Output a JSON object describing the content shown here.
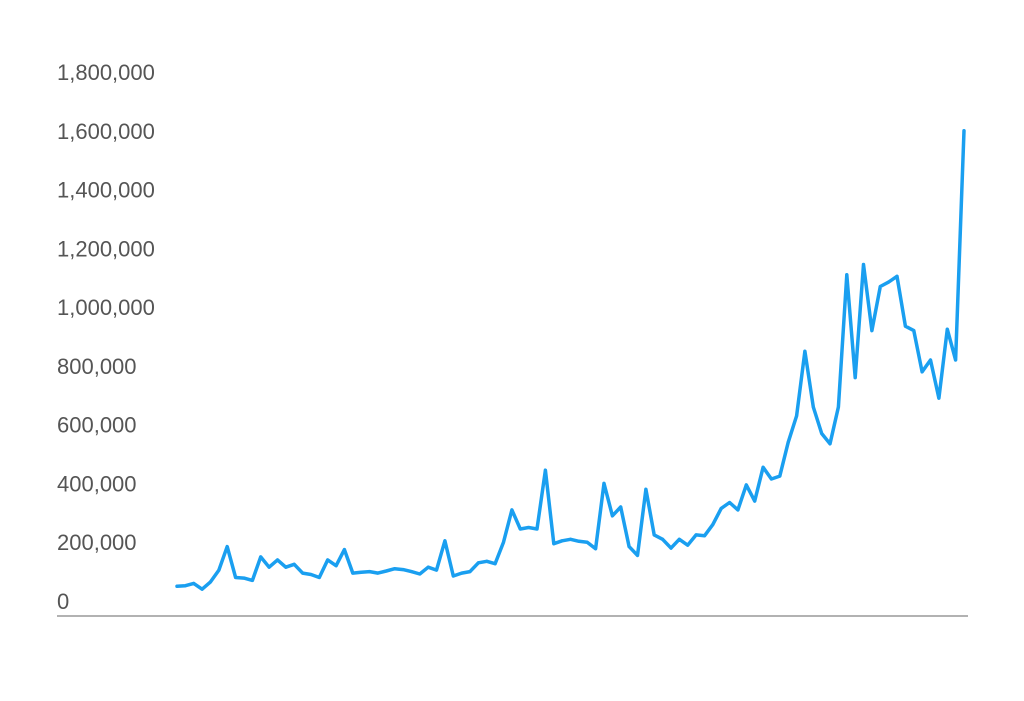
{
  "chart_data": {
    "type": "line",
    "title": "",
    "xlabel": "",
    "ylabel": "",
    "ylim": [
      0,
      1800000
    ],
    "yticks": [
      {
        "value": 0,
        "label": "0"
      },
      {
        "value": 200000,
        "label": "200,000"
      },
      {
        "value": 400000,
        "label": "400,000"
      },
      {
        "value": 600000,
        "label": "600,000"
      },
      {
        "value": 800000,
        "label": "800,000"
      },
      {
        "value": 1000000,
        "label": "1,000,000"
      },
      {
        "value": 1200000,
        "label": "1,200,000"
      },
      {
        "value": 1400000,
        "label": "1,400,000"
      },
      {
        "value": 1600000,
        "label": "1,600,000"
      },
      {
        "value": 1800000,
        "label": "1,800,000"
      }
    ],
    "grid": false,
    "legend": "none",
    "colors": {
      "line": "#1a9ff0",
      "axis": "#999999",
      "tick_text": "#555555"
    },
    "series": [
      {
        "values": [
          50000,
          52000,
          60000,
          40000,
          65000,
          105000,
          185000,
          80000,
          78000,
          70000,
          150000,
          115000,
          140000,
          115000,
          125000,
          95000,
          90000,
          80000,
          140000,
          120000,
          175000,
          95000,
          98000,
          100000,
          95000,
          102000,
          110000,
          107000,
          100000,
          92000,
          115000,
          105000,
          205000,
          85000,
          95000,
          100000,
          130000,
          135000,
          127000,
          200000,
          310000,
          245000,
          250000,
          245000,
          445000,
          195000,
          205000,
          210000,
          203000,
          200000,
          178000,
          400000,
          290000,
          320000,
          185000,
          155000,
          380000,
          225000,
          210000,
          180000,
          210000,
          190000,
          225000,
          222000,
          260000,
          315000,
          335000,
          310000,
          395000,
          340000,
          455000,
          415000,
          425000,
          540000,
          630000,
          850000,
          660000,
          570000,
          535000,
          660000,
          1110000,
          760000,
          1145000,
          920000,
          1070000,
          1085000,
          1105000,
          935000,
          920000,
          780000,
          820000,
          690000,
          925000,
          820000,
          1600000
        ]
      }
    ]
  }
}
